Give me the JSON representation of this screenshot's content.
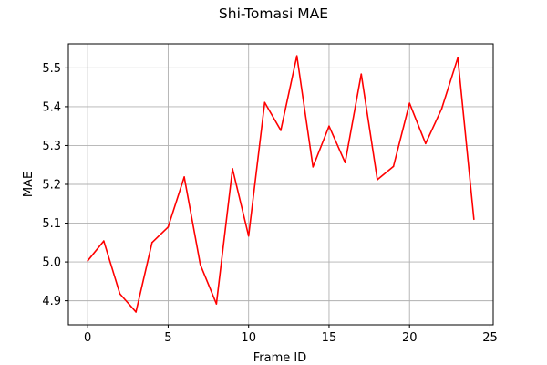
{
  "chart_data": {
    "type": "line",
    "title": "Shi-Tomasi MAE",
    "xlabel": "Frame ID",
    "ylabel": "MAE",
    "xlim": [
      -1.2,
      25.2
    ],
    "ylim": [
      4.838,
      5.562
    ],
    "xticks": [
      0,
      5,
      10,
      15,
      20,
      25
    ],
    "xtick_labels": [
      "0",
      "5",
      "10",
      "15",
      "20",
      "25"
    ],
    "yticks": [
      4.9,
      5.0,
      5.1,
      5.2,
      5.3,
      5.4,
      5.5
    ],
    "ytick_labels": [
      "4.9",
      "5.0",
      "5.1",
      "5.2",
      "5.3",
      "5.4",
      "5.5"
    ],
    "grid": true,
    "series": [
      {
        "color": "#ff0000",
        "x": [
          0,
          1,
          2,
          3,
          4,
          5,
          6,
          7,
          8,
          9,
          10,
          11,
          12,
          13,
          14,
          15,
          16,
          17,
          18,
          19,
          20,
          21,
          22,
          23,
          24
        ],
        "values": [
          5.003,
          5.054,
          4.918,
          4.871,
          5.05,
          5.09,
          5.219,
          4.993,
          4.892,
          5.24,
          5.067,
          5.411,
          5.339,
          5.531,
          5.245,
          5.35,
          5.256,
          5.484,
          5.212,
          5.246,
          5.409,
          5.305,
          5.395,
          5.526,
          5.11
        ]
      }
    ]
  }
}
